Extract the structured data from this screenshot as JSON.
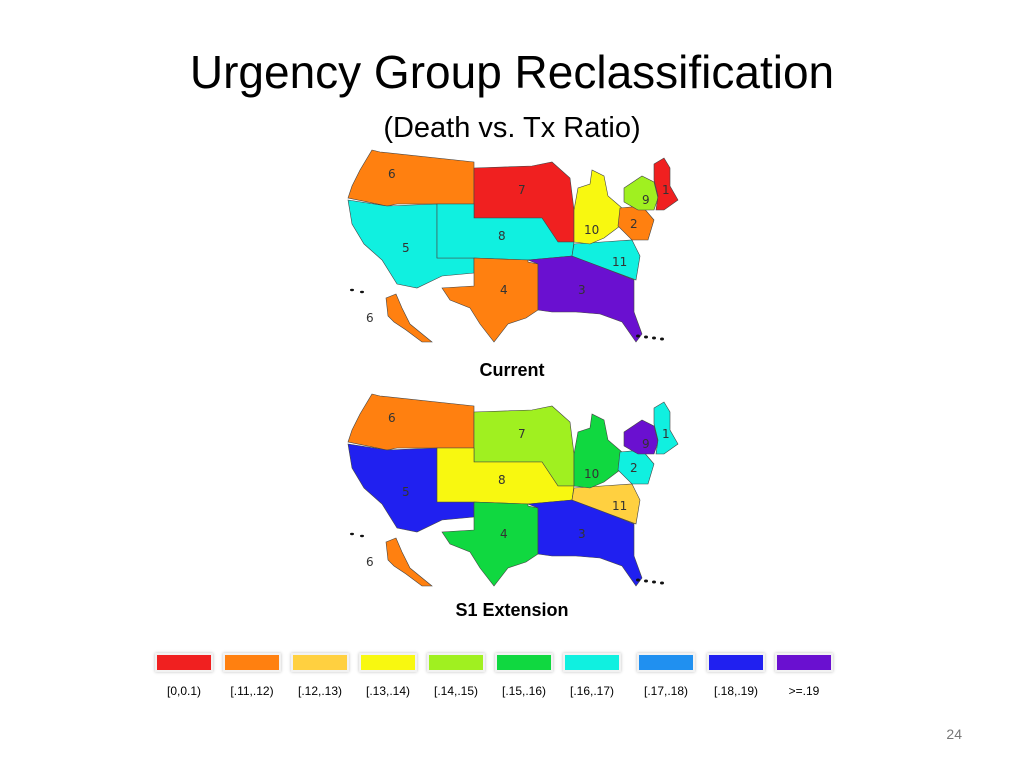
{
  "slide": {
    "title": "Urgency Group Reclassification",
    "subtitle": "(Death vs. Tx Ratio)",
    "page_number": "24"
  },
  "maps": [
    {
      "caption": "Current",
      "regions": [
        {
          "id": "1",
          "color": "#f02020"
        },
        {
          "id": "2",
          "color": "#ff8010"
        },
        {
          "id": "3",
          "color": "#6a10d0"
        },
        {
          "id": "4",
          "color": "#ff8010"
        },
        {
          "id": "5",
          "color": "#10f0e0"
        },
        {
          "id": "6",
          "color": "#ff8010"
        },
        {
          "id": "7",
          "color": "#f02020"
        },
        {
          "id": "8",
          "color": "#10f0e0"
        },
        {
          "id": "9",
          "color": "#a0f020"
        },
        {
          "id": "10",
          "color": "#f8f810"
        },
        {
          "id": "11",
          "color": "#10f0e0"
        }
      ]
    },
    {
      "caption": "S1 Extension",
      "regions": [
        {
          "id": "1",
          "color": "#10f0e0"
        },
        {
          "id": "2",
          "color": "#10f0e0"
        },
        {
          "id": "3",
          "color": "#2020f0"
        },
        {
          "id": "4",
          "color": "#10d840"
        },
        {
          "id": "5",
          "color": "#2020f0"
        },
        {
          "id": "6",
          "color": "#ff8010"
        },
        {
          "id": "7",
          "color": "#a0f020"
        },
        {
          "id": "8",
          "color": "#f8f810"
        },
        {
          "id": "9",
          "color": "#6a10d0"
        },
        {
          "id": "10",
          "color": "#10d840"
        },
        {
          "id": "11",
          "color": "#ffd040"
        }
      ]
    }
  ],
  "legend": [
    {
      "label": "[0,0.1)",
      "color": "#f02020"
    },
    {
      "label": "[.11,.12)",
      "color": "#ff8010"
    },
    {
      "label": "[.12,.13)",
      "color": "#ffd040"
    },
    {
      "label": "[.13,.14)",
      "color": "#f8f810"
    },
    {
      "label": "[.14,.15)",
      "color": "#a0f020"
    },
    {
      "label": "[.15,.16)",
      "color": "#10d840"
    },
    {
      "label": "[.16,.17)",
      "color": "#10f0e0"
    },
    {
      "label": "[.17,.18)",
      "color": "#2090f0"
    },
    {
      "label": "[.18,.19)",
      "color": "#2020f0"
    },
    {
      "label": ">=.19",
      "color": "#6a10d0"
    }
  ]
}
